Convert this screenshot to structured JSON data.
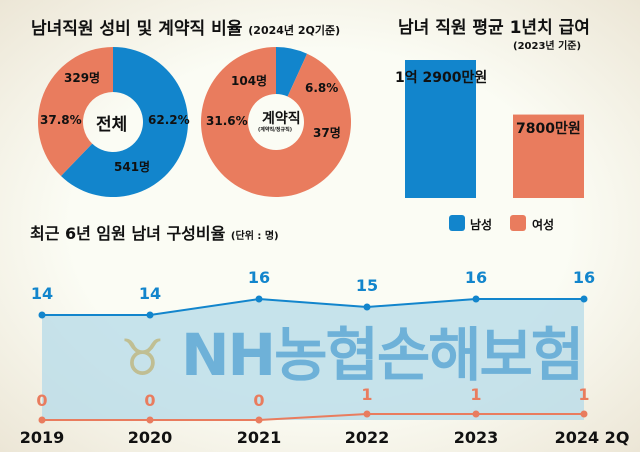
{
  "colors": {
    "male": "#1285cc",
    "female": "#e97c5e",
    "area": "#b9dce8"
  },
  "watermark": "NH농협손해보험",
  "chart_data": [
    {
      "type": "pie",
      "title": "남녀직원 성비 및 계약직 비율",
      "subtitle": "(2024년 2Q기준)",
      "center_label": "전체",
      "slices": [
        {
          "name": "남성",
          "value": 62.2,
          "pct_label": "62.2%",
          "count_label": "541명"
        },
        {
          "name": "여성",
          "value": 37.8,
          "pct_label": "37.8%",
          "count_label": "329명"
        }
      ]
    },
    {
      "type": "pie",
      "center_label": "계약직",
      "center_sub": "(계약직/정규직)",
      "slices": [
        {
          "name": "남성",
          "value": 6.8,
          "pct_label": "6.8%",
          "count_label": "37명"
        },
        {
          "name": "여성",
          "value": 31.6,
          "pct_label": "31.6%",
          "count_label": "104명"
        }
      ]
    },
    {
      "type": "bar",
      "title": "남녀 직원 평균 1년치 급여",
      "subtitle": "(2023년 기준)",
      "categories": [
        "남성",
        "여성"
      ],
      "values": [
        12900,
        7800
      ],
      "value_labels": [
        "1억 2900만원",
        "7800만원"
      ],
      "unit": "만원",
      "legend": [
        "남성",
        "여성"
      ]
    },
    {
      "type": "line",
      "title": "최근 6년 임원 남녀 구성비율",
      "subtitle": "(단위 : 명)",
      "x": [
        "2019",
        "2020",
        "2021",
        "2022",
        "2023",
        "2024 2Q"
      ],
      "series": [
        {
          "name": "남성",
          "values": [
            14,
            14,
            16,
            15,
            16,
            16
          ]
        },
        {
          "name": "여성",
          "values": [
            0,
            0,
            0,
            1,
            1,
            1
          ]
        }
      ],
      "legend": [
        "남성",
        "여성"
      ]
    }
  ]
}
